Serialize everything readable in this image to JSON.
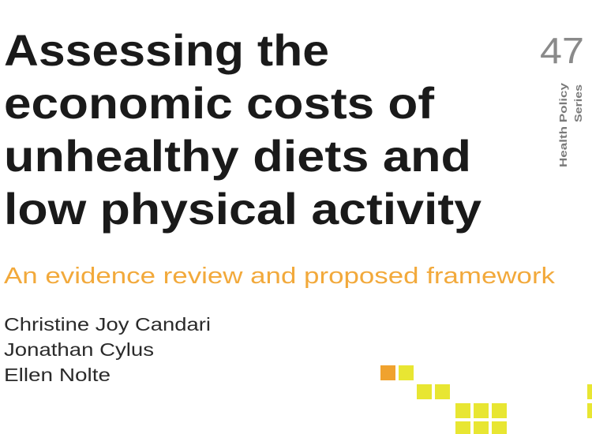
{
  "cover": {
    "title_lines": [
      "Assessing the",
      "economic costs of",
      "unhealthy diets and",
      "low physical activity"
    ],
    "subtitle": "An evidence review and proposed framework",
    "authors": [
      "Christine Joy Candari",
      "Jonathan Cylus",
      "Ellen Nolte"
    ],
    "series_number": "47",
    "series_label": [
      "Health Policy",
      "Series"
    ]
  }
}
